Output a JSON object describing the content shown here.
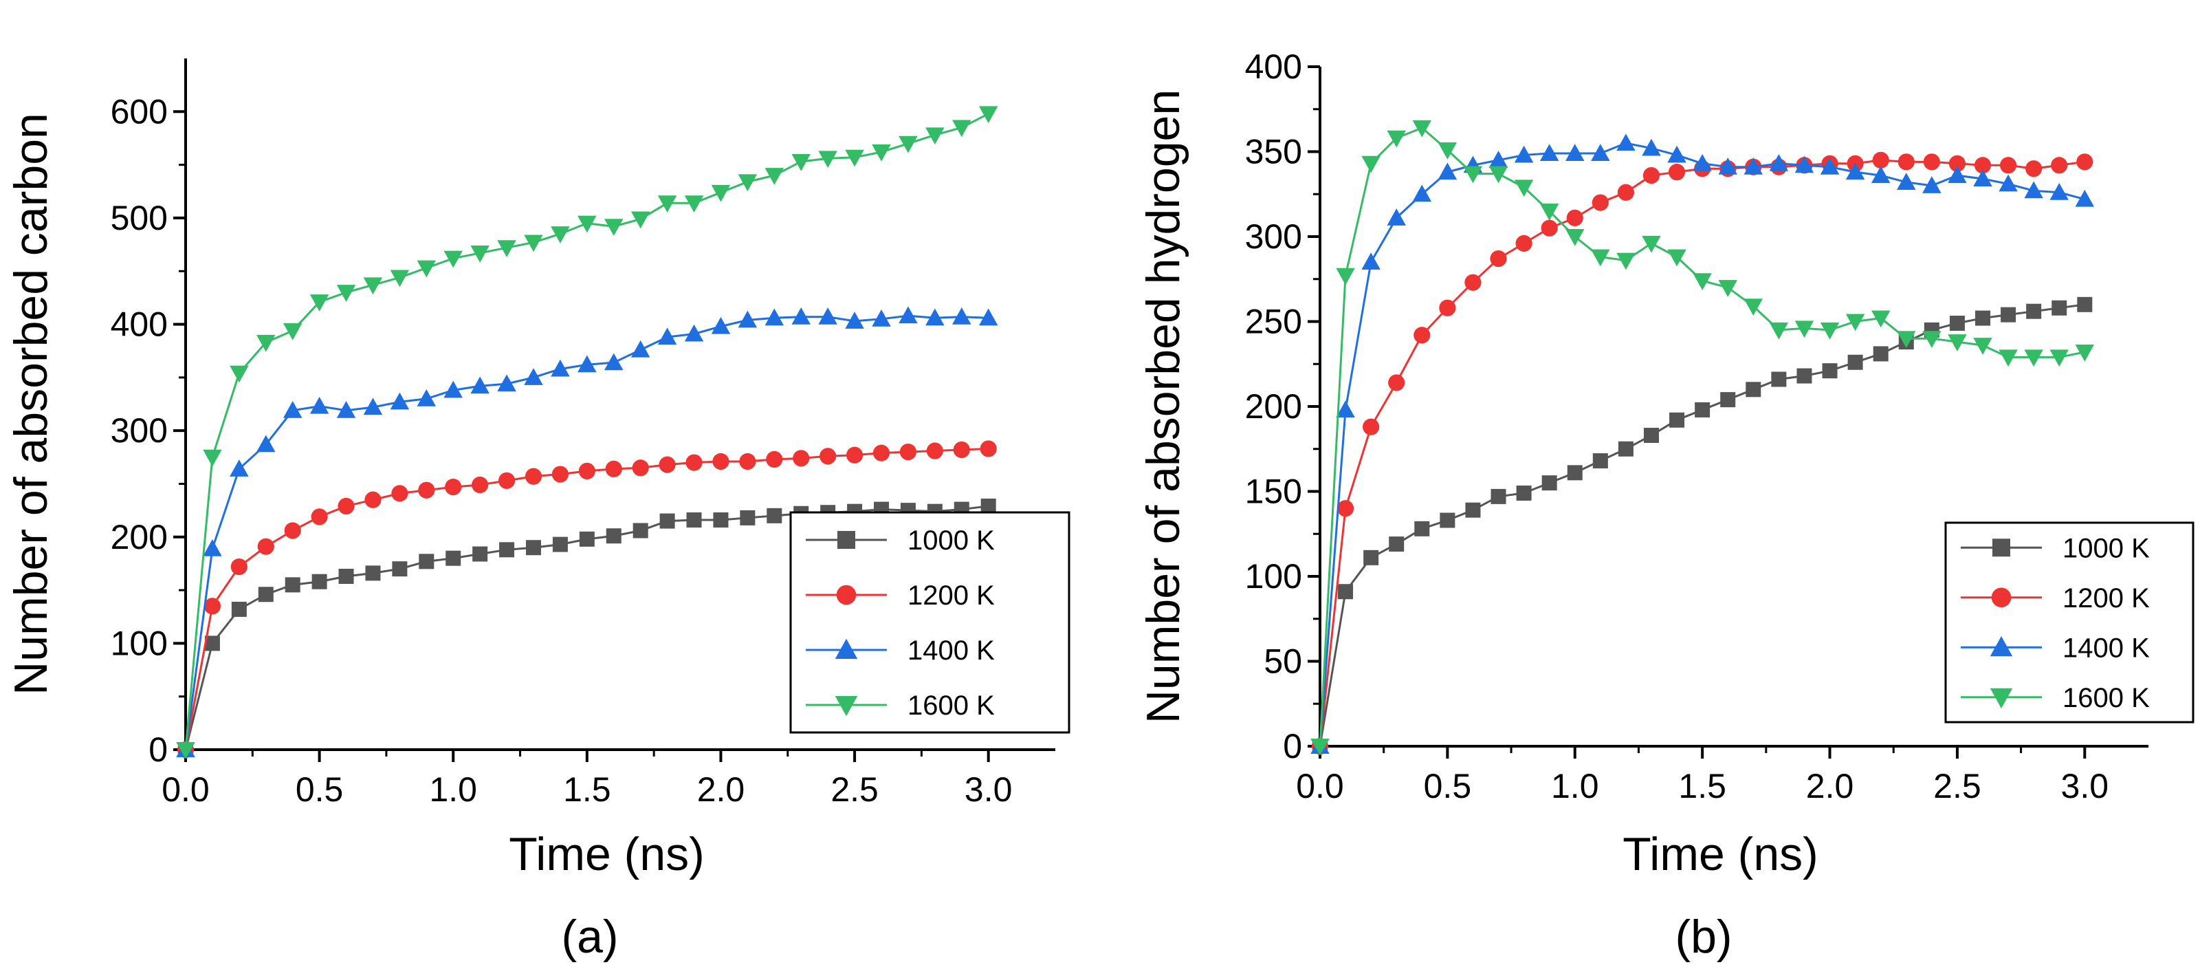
{
  "chart_data": [
    {
      "type": "line",
      "panel_label": "(a)",
      "xlabel": "Time (ns)",
      "ylabel": "Number of absorbed carbon",
      "xlim": [
        0,
        3.25
      ],
      "ylim": [
        0,
        650
      ],
      "xticks": [
        0.0,
        0.5,
        1.0,
        1.5,
        2.0,
        2.5,
        3.0
      ],
      "xtick_labels": [
        "0.0",
        "0.5",
        "1.0",
        "1.5",
        "2.0",
        "2.5",
        "3.0"
      ],
      "yticks": [
        0,
        100,
        200,
        300,
        400,
        500,
        600
      ],
      "ytick_labels": [
        "0",
        "100",
        "200",
        "300",
        "400",
        "500",
        "600"
      ],
      "legend_position": "bottom-right",
      "x": [
        0.0,
        0.1,
        0.2,
        0.3,
        0.4,
        0.5,
        0.6,
        0.7,
        0.8,
        0.9,
        1.0,
        1.1,
        1.2,
        1.3,
        1.4,
        1.5,
        1.6,
        1.7,
        1.8,
        1.9,
        2.0,
        2.1,
        2.2,
        2.3,
        2.4,
        2.5,
        2.6,
        2.7,
        2.8,
        2.9,
        3.0
      ],
      "series": [
        {
          "name": "1000 K",
          "color": "#555555",
          "marker": "square",
          "values": [
            0,
            100,
            132,
            146,
            155,
            158,
            163,
            166,
            170,
            177,
            180,
            184,
            188,
            190,
            193,
            198,
            201,
            206,
            215,
            216,
            216,
            218,
            220,
            222,
            223,
            224,
            226,
            225,
            224,
            226,
            229
          ]
        },
        {
          "name": "1200 K",
          "color": "#ee3333",
          "marker": "circle",
          "values": [
            0,
            135,
            172,
            191,
            206,
            219,
            229,
            235,
            241,
            244,
            247,
            249,
            253,
            257,
            259,
            262,
            264,
            265,
            268,
            270,
            271,
            271,
            273,
            274,
            276,
            277,
            279,
            280,
            281,
            282,
            283
          ]
        },
        {
          "name": "1400 K",
          "color": "#1f6fe0",
          "marker": "triangle-up",
          "values": [
            0,
            189,
            264,
            287,
            319,
            323,
            319,
            322,
            327,
            330,
            338,
            342,
            344,
            350,
            358,
            362,
            364,
            376,
            388,
            391,
            398,
            404,
            406,
            407,
            407,
            403,
            405,
            408,
            406,
            407,
            406
          ]
        },
        {
          "name": "1600 K",
          "color": "#33bb66",
          "marker": "triangle-down",
          "values": [
            0,
            275,
            354,
            383,
            394,
            421,
            430,
            437,
            444,
            453,
            462,
            467,
            472,
            477,
            485,
            495,
            492,
            499,
            514,
            514,
            524,
            534,
            540,
            553,
            556,
            557,
            562,
            570,
            578,
            585,
            598
          ]
        }
      ]
    },
    {
      "type": "line",
      "panel_label": "(b)",
      "xlabel": "Time (ns)",
      "ylabel": "Number of absorbed hydrogen",
      "xlim": [
        0,
        3.25
      ],
      "ylim": [
        0,
        400
      ],
      "xticks": [
        0.0,
        0.5,
        1.0,
        1.5,
        2.0,
        2.5,
        3.0
      ],
      "xtick_labels": [
        "0.0",
        "0.5",
        "1.0",
        "1.5",
        "2.0",
        "2.5",
        "3.0"
      ],
      "yticks": [
        0,
        50,
        100,
        150,
        200,
        250,
        300,
        350,
        400
      ],
      "ytick_labels": [
        "0",
        "50",
        "100",
        "150",
        "200",
        "250",
        "300",
        "350",
        "400"
      ],
      "legend_position": "bottom-right",
      "x": [
        0.0,
        0.1,
        0.2,
        0.3,
        0.4,
        0.5,
        0.6,
        0.7,
        0.8,
        0.9,
        1.0,
        1.1,
        1.2,
        1.3,
        1.4,
        1.5,
        1.6,
        1.7,
        1.8,
        1.9,
        2.0,
        2.1,
        2.2,
        2.3,
        2.4,
        2.5,
        2.6,
        2.7,
        2.8,
        2.9,
        3.0
      ],
      "series": [
        {
          "name": "1000 K",
          "color": "#555555",
          "marker": "square",
          "values": [
            0,
            91,
            111,
            119,
            128,
            133,
            139,
            147,
            149,
            155,
            161,
            168,
            175,
            183,
            192,
            198,
            204,
            210,
            216,
            218,
            221,
            226,
            231,
            238,
            245,
            249,
            252,
            254,
            256,
            258,
            260
          ]
        },
        {
          "name": "1200 K",
          "color": "#ee3333",
          "marker": "circle",
          "values": [
            0,
            140,
            188,
            214,
            242,
            258,
            273,
            287,
            296,
            305,
            311,
            320,
            326,
            336,
            338,
            340,
            340,
            341,
            341,
            342,
            343,
            343,
            345,
            344,
            344,
            343,
            342,
            342,
            340,
            342,
            344
          ]
        },
        {
          "name": "1400 K",
          "color": "#1f6fe0",
          "marker": "triangle-up",
          "values": [
            0,
            198,
            285,
            311,
            325,
            338,
            342,
            345,
            348,
            349,
            349,
            349,
            355,
            352,
            348,
            343,
            341,
            341,
            343,
            342,
            341,
            338,
            336,
            332,
            330,
            336,
            334,
            331,
            327,
            326,
            322
          ]
        },
        {
          "name": "1600 K",
          "color": "#33bb66",
          "marker": "triangle-down",
          "values": [
            0,
            277,
            343,
            358,
            364,
            351,
            337,
            337,
            329,
            315,
            300,
            288,
            286,
            296,
            288,
            274,
            270,
            259,
            245,
            246,
            245,
            250,
            252,
            240,
            240,
            238,
            236,
            229,
            229,
            229,
            232
          ]
        }
      ]
    }
  ]
}
